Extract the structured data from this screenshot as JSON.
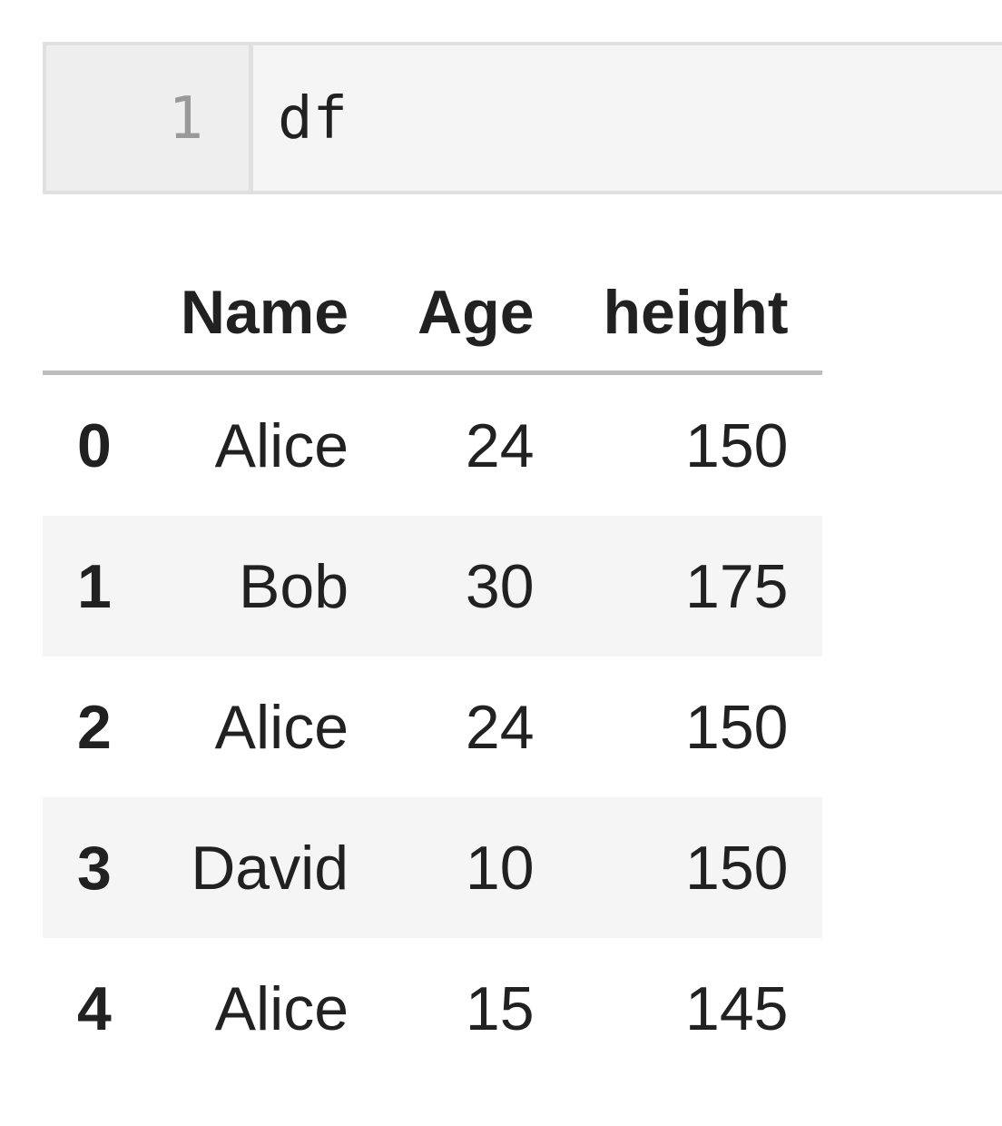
{
  "cell": {
    "line_number": "1",
    "code": "df"
  },
  "table": {
    "columns": [
      "",
      "Name",
      "Age",
      "height"
    ],
    "rows": [
      [
        "0",
        "Alice",
        "24",
        "150"
      ],
      [
        "1",
        "Bob",
        "30",
        "175"
      ],
      [
        "2",
        "Alice",
        "24",
        "150"
      ],
      [
        "3",
        "David",
        "10",
        "150"
      ],
      [
        "4",
        "Alice",
        "15",
        "145"
      ]
    ]
  }
}
